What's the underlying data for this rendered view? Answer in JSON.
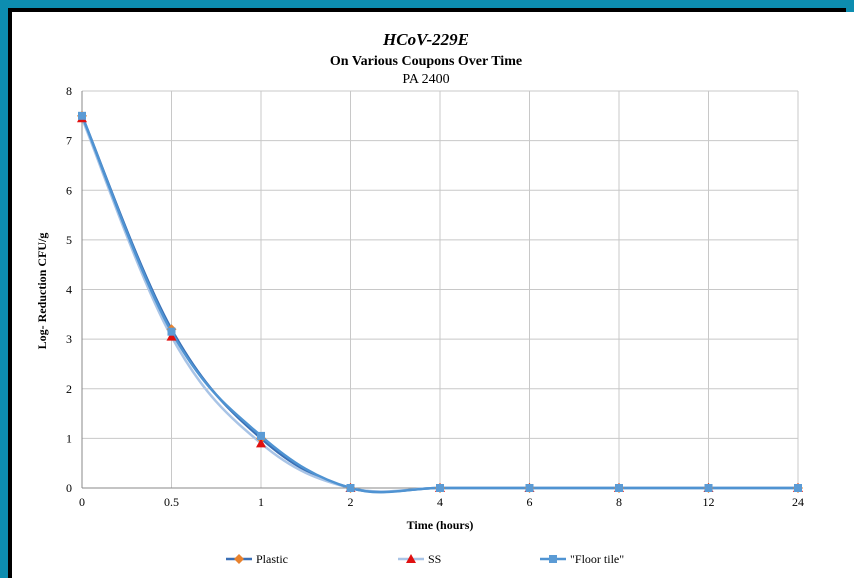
{
  "chart_data": {
    "type": "line",
    "title": "HCoV-229E",
    "subtitle": "On Various Coupons Over Time",
    "subtitle2": "PA 2400",
    "xlabel": "Time (hours)",
    "ylabel": "Log- Reduction CFU/g",
    "categories": [
      "0",
      "0.5",
      "1",
      "2",
      "4",
      "6",
      "8",
      "12",
      "24"
    ],
    "ylim": [
      0,
      8
    ],
    "yticks": [
      "0",
      "1",
      "2",
      "3",
      "4",
      "5",
      "6",
      "7",
      "8"
    ],
    "grid": true,
    "legend_position": "bottom",
    "series": [
      {
        "name": "Plastic",
        "values": [
          7.5,
          3.2,
          1.0,
          0,
          0,
          0,
          0,
          0,
          0
        ],
        "line_color": "#3a6fb5",
        "marker": "diamond",
        "marker_color": "#e8822e"
      },
      {
        "name": "SS",
        "values": [
          7.45,
          3.05,
          0.9,
          0,
          0,
          0,
          0,
          0,
          0
        ],
        "line_color": "#a9c4e6",
        "marker": "triangle",
        "marker_color": "#e01010"
      },
      {
        "name": "\"Floor tile\"",
        "values": [
          7.5,
          3.15,
          1.05,
          0,
          0,
          0,
          0,
          0,
          0
        ],
        "line_color": "#4f93d2",
        "marker": "square",
        "marker_color": "#5b9bd5"
      }
    ]
  }
}
